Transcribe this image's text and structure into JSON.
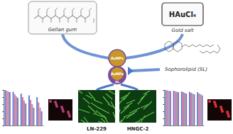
{
  "labels": {
    "gellan": "Gellan gum",
    "gold_salt_formula": "HAuCl₄",
    "gold_salt": "Gold salt",
    "sophorolipid": "Sophorolipid (SL)",
    "nanoparticles": [
      "AuNPs",
      "AuNPs"
    ],
    "sl_tag": "SL",
    "cell_lines": [
      "LN-229",
      "HNGC-2"
    ]
  },
  "chart_data": [
    {
      "type": "bar",
      "categories": [
        null,
        null,
        null,
        null,
        null
      ],
      "series": [
        {
          "color": "#5b7fc7",
          "values": [
            100,
            95,
            90,
            85,
            80
          ]
        },
        {
          "color": "#d96aa6",
          "values": [
            98,
            88,
            80,
            72,
            65
          ]
        },
        {
          "color": "#9a9a9a",
          "values": [
            96,
            82,
            70,
            60,
            50
          ]
        },
        {
          "color": "#8e6bbf",
          "values": [
            94,
            78,
            62,
            50,
            40
          ]
        }
      ],
      "ylim": [
        0,
        100
      ],
      "yticks": [
        0,
        20,
        40,
        60,
        80,
        100
      ],
      "grid": false,
      "tick_labels": false
    },
    {
      "type": "bar",
      "categories": [
        null,
        null,
        null,
        null,
        null
      ],
      "series": [
        {
          "color": "#5b7fc7",
          "values": [
            100,
            98,
            96,
            95,
            94
          ]
        },
        {
          "color": "#d96aa6",
          "values": [
            99,
            96,
            94,
            92,
            90
          ]
        },
        {
          "color": "#9a9a9a",
          "values": [
            98,
            95,
            92,
            90,
            88
          ]
        },
        {
          "color": "#8e6bbf",
          "values": [
            97,
            94,
            90,
            88,
            85
          ]
        }
      ],
      "ylim": [
        0,
        100
      ],
      "yticks": [
        0,
        20,
        40,
        60,
        80,
        100
      ],
      "grid": false,
      "tick_labels": false
    }
  ]
}
